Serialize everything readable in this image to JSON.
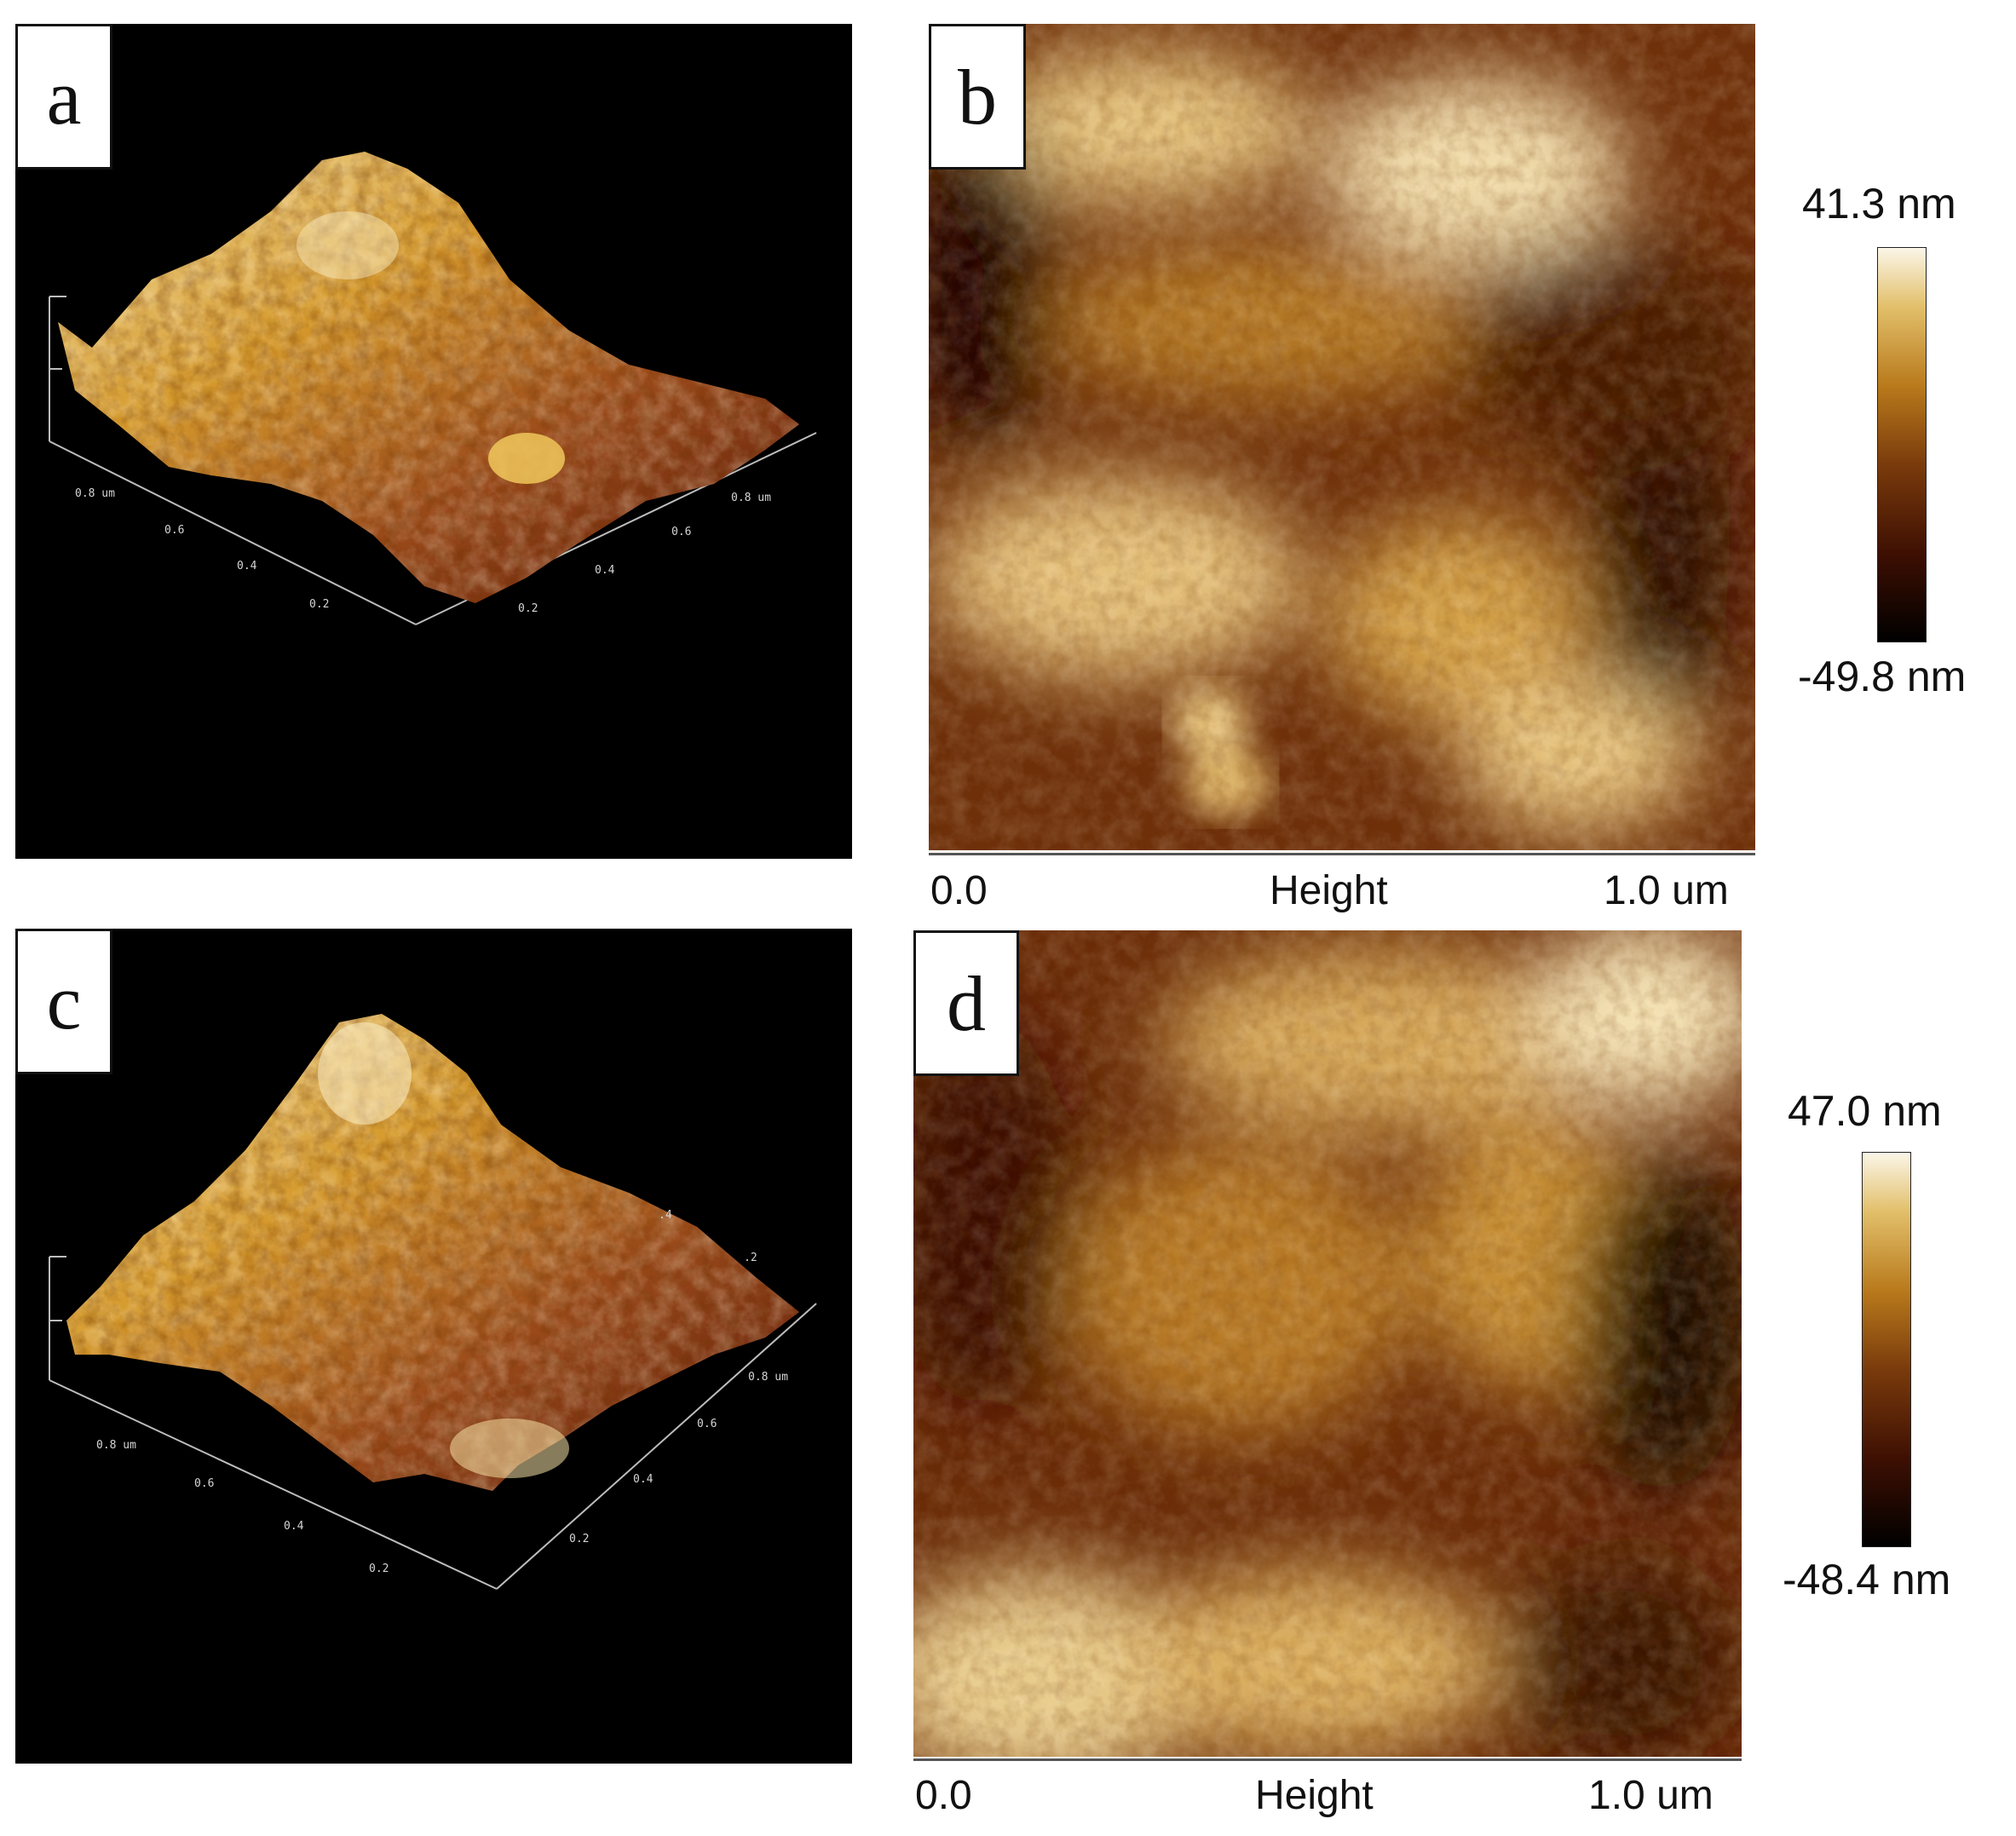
{
  "panels": [
    {
      "id": "a",
      "label": "a",
      "kind": "3d-surface",
      "ticks_left": [
        "0.8 um",
        "0.6",
        "0.4",
        "0.2"
      ],
      "ticks_right": [
        "0.8 um",
        "0.6",
        "0.4",
        "0.2"
      ]
    },
    {
      "id": "b",
      "label": "b",
      "kind": "height-map",
      "colorbar": {
        "max": "41.3 nm",
        "min": "-49.8 nm"
      },
      "axis": {
        "start": "0.0",
        "title": "Height",
        "end": "1.0 um"
      }
    },
    {
      "id": "c",
      "label": "c",
      "kind": "3d-surface",
      "ticks_left": [
        "0.8 um",
        "0.6",
        "0.4",
        "0.2"
      ],
      "ticks_right": [
        "0.8 um",
        "0.6",
        "0.4",
        "0.2"
      ],
      "ticks_back": [
        ".4",
        ".2"
      ]
    },
    {
      "id": "d",
      "label": "d",
      "kind": "height-map",
      "colorbar": {
        "max": "47.0 nm",
        "min": "-48.4 nm"
      },
      "axis": {
        "start": "0.0",
        "title": "Height",
        "end": "1.0 um"
      }
    }
  ],
  "colors": {
    "background": "#000000",
    "colormap": [
      "#000000",
      "#3d0f02",
      "#7a3b0c",
      "#b97a1c",
      "#e2bf6a",
      "#fbf6e8"
    ]
  }
}
